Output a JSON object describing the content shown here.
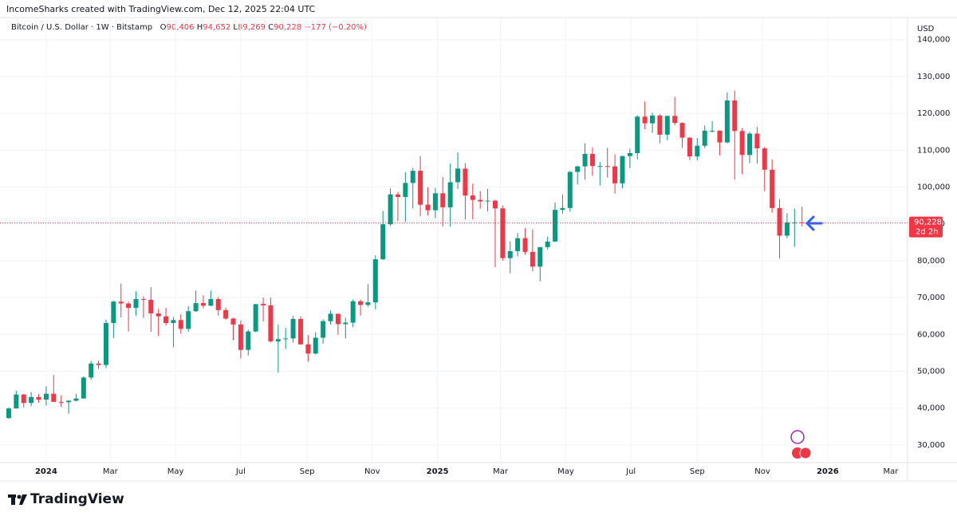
{
  "header": {
    "credit": "IncomeSharks created with TradingView.com, Dec 12, 2025 22:04 UTC",
    "symbol": "Bitcoin / U.S. Dollar · 1W · Bitstamp",
    "ohlc": [
      {
        "key": "O",
        "value": "90,406"
      },
      {
        "key": "H",
        "value": "94,652"
      },
      {
        "key": "L",
        "value": "89,269"
      },
      {
        "key": "C",
        "value": "90,228"
      }
    ],
    "change": "−177 (−0.20%)"
  },
  "brand": "TradingView",
  "chart_data": {
    "type": "candlestick",
    "currency": "USD",
    "up_color": "#089981",
    "down_color": "#f23645",
    "grid": true,
    "open": [
      37300,
      39900,
      43700,
      41400,
      43000,
      42300,
      43900,
      41700,
      41600,
      42000,
      42600,
      48300,
      52100,
      51700,
      63100,
      68900,
      68400,
      67200,
      69600,
      69400,
      65700,
      64900,
      63100,
      63900,
      61500,
      66300,
      68500,
      67800,
      69600,
      66600,
      64300,
      62700,
      55800,
      60800,
      68300,
      67900,
      58100,
      58700,
      58900,
      64200,
      57300,
      54800,
      59100,
      63600,
      65600,
      62800,
      63200,
      69000,
      68000,
      68700,
      80400,
      89900,
      98000,
      97300,
      101100,
      104400,
      95200,
      93700,
      98300,
      94500,
      101300,
      105000,
      97700,
      96500,
      96100,
      96300,
      94200,
      80700,
      82600,
      86100,
      82400,
      78400,
      83700,
      85200,
      93800,
      94300,
      104100,
      105600,
      109000,
      105700,
      105700,
      105600,
      101000,
      108400,
      109200,
      119100,
      117300,
      119400,
      114200,
      119300,
      117400,
      113400,
      108300,
      111200,
      115300,
      115300,
      112100,
      123500,
      115200,
      108700,
      114500,
      110500,
      104700,
      94300,
      86800,
      90400,
      90406
    ],
    "high": [
      40200,
      44700,
      43800,
      44400,
      43800,
      45900,
      49000,
      43500,
      42200,
      43900,
      48600,
      52800,
      52900,
      64000,
      69200,
      73800,
      68900,
      71700,
      70300,
      72800,
      66900,
      67200,
      64700,
      65500,
      67700,
      71900,
      70600,
      71900,
      70200,
      67300,
      64500,
      63800,
      61300,
      68300,
      70000,
      70000,
      62700,
      61800,
      65000,
      64900,
      59800,
      60600,
      64100,
      66500,
      65600,
      64500,
      69500,
      69500,
      73600,
      81500,
      93500,
      99600,
      98700,
      104000,
      105200,
      108400,
      99900,
      99800,
      102700,
      106400,
      109400,
      106500,
      100900,
      98900,
      99500,
      96500,
      95000,
      85300,
      87500,
      88800,
      88500,
      83700,
      86500,
      95800,
      97900,
      104300,
      105800,
      111900,
      110700,
      106800,
      110600,
      108900,
      108500,
      110400,
      119500,
      123200,
      120200,
      119800,
      119300,
      124500,
      117600,
      113500,
      113300,
      116700,
      117900,
      115400,
      125700,
      126200,
      116000,
      115000,
      116300,
      110900,
      107500,
      96700,
      92900,
      94100,
      94652
    ],
    "low": [
      37100,
      39900,
      40200,
      40500,
      41500,
      40700,
      41700,
      40300,
      38500,
      41800,
      42600,
      47700,
      50600,
      50900,
      59000,
      64600,
      60800,
      65100,
      64500,
      60700,
      59600,
      62400,
      56500,
      60200,
      60800,
      66100,
      67100,
      67600,
      65100,
      64000,
      58400,
      53500,
      54300,
      60600,
      63500,
      57800,
      49600,
      56100,
      57800,
      57200,
      52600,
      54600,
      57500,
      62700,
      59900,
      58900,
      62000,
      65100,
      67500,
      66800,
      80200,
      89400,
      90800,
      90500,
      94200,
      92100,
      92300,
      91500,
      89300,
      89300,
      99500,
      91200,
      91200,
      94100,
      93400,
      78300,
      80000,
      76600,
      81200,
      81600,
      77100,
      74400,
      83100,
      85100,
      92800,
      93400,
      100700,
      102000,
      103000,
      100400,
      102600,
      98200,
      99600,
      105100,
      107500,
      115700,
      114700,
      111900,
      112700,
      116800,
      110600,
      107300,
      107300,
      110600,
      114800,
      108600,
      111900,
      102000,
      103500,
      106500,
      106400,
      98900,
      93000,
      80600,
      86100,
      83800,
      89269
    ],
    "close": [
      39900,
      43700,
      41400,
      43000,
      42300,
      43900,
      41700,
      41600,
      42000,
      42600,
      48300,
      52100,
      51700,
      63100,
      68900,
      68400,
      67200,
      69600,
      69400,
      65700,
      64900,
      63100,
      63900,
      61500,
      66300,
      68500,
      67800,
      69600,
      66600,
      64300,
      62700,
      55800,
      60800,
      68200,
      67900,
      58100,
      58700,
      58900,
      64200,
      57300,
      54800,
      59100,
      63600,
      65600,
      62800,
      63200,
      69000,
      68000,
      68700,
      80400,
      89900,
      98000,
      97300,
      101100,
      104400,
      95200,
      93700,
      98300,
      94500,
      101300,
      105000,
      97700,
      96500,
      96100,
      96300,
      94200,
      80700,
      82600,
      86100,
      82400,
      78400,
      83700,
      85200,
      93800,
      94300,
      104100,
      105600,
      109000,
      105700,
      105700,
      105600,
      101000,
      108400,
      109200,
      119100,
      117300,
      119400,
      114200,
      119300,
      117400,
      113400,
      108300,
      111200,
      115300,
      115300,
      112100,
      123500,
      115200,
      108700,
      114500,
      110500,
      104700,
      94300,
      86800,
      90400,
      90400,
      90228
    ],
    "xlim": [
      -1.17,
      120.1
    ],
    "xticks": [
      {
        "value": 5.0,
        "label": "2024"
      },
      {
        "value": 13.57,
        "label": "Mar"
      },
      {
        "value": 22.29,
        "label": "May"
      },
      {
        "value": 31.0,
        "label": "Jul"
      },
      {
        "value": 39.86,
        "label": "Sep"
      },
      {
        "value": 48.57,
        "label": "Nov"
      },
      {
        "value": 57.29,
        "label": "2025"
      },
      {
        "value": 65.71,
        "label": "Mar"
      },
      {
        "value": 74.43,
        "label": "May"
      },
      {
        "value": 83.14,
        "label": "Jul"
      },
      {
        "value": 92.0,
        "label": "Sep"
      },
      {
        "value": 100.71,
        "label": "Nov"
      },
      {
        "value": 109.43,
        "label": "2026"
      },
      {
        "value": 117.86,
        "label": "Mar"
      }
    ],
    "ylim": [
      26300,
      142100
    ],
    "yticks": [
      {
        "value": 30000,
        "label": "30,000"
      },
      {
        "value": 40000,
        "label": "40,000"
      },
      {
        "value": 50000,
        "label": "50,000"
      },
      {
        "value": 60000,
        "label": "60,000"
      },
      {
        "value": 70000,
        "label": "70,000"
      },
      {
        "value": 80000,
        "label": "80,000"
      },
      {
        "value": 90000,
        "label": "90,000"
      },
      {
        "value": 100000,
        "label": "100,000"
      },
      {
        "value": 110000,
        "label": "110,000"
      },
      {
        "value": 120000,
        "label": "120,000"
      },
      {
        "value": 130000,
        "label": "130,000"
      },
      {
        "value": 140000,
        "label": "140,000"
      }
    ],
    "last_price": {
      "value": 90228,
      "label": "90,228"
    },
    "countdown": "2d 2h"
  }
}
